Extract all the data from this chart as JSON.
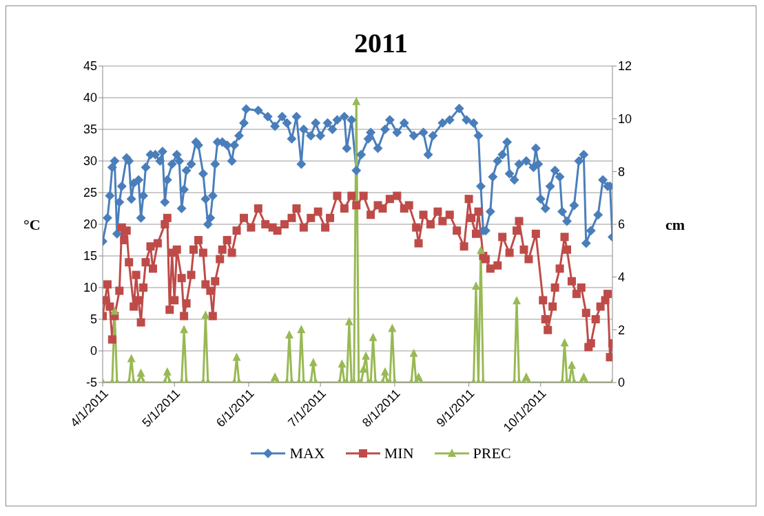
{
  "chart_data": {
    "type": "line",
    "title": "2011",
    "ylabel": "°C",
    "y2label": "cm",
    "xlim": [
      "2011-04-01",
      "2011-10-31"
    ],
    "xticks": [
      {
        "value": "2011-04-01",
        "label": "4/1/2011"
      },
      {
        "value": "2011-05-01",
        "label": "5/1/2011"
      },
      {
        "value": "2011-06-01",
        "label": "6/1/2011"
      },
      {
        "value": "2011-07-01",
        "label": "7/1/2011"
      },
      {
        "value": "2011-08-01",
        "label": "8/1/2011"
      },
      {
        "value": "2011-09-01",
        "label": "9/1/2011"
      },
      {
        "value": "2011-10-01",
        "label": "10/1/2011"
      }
    ],
    "ylim": [
      -5,
      45
    ],
    "yticks": [
      -5,
      0,
      5,
      10,
      15,
      20,
      25,
      30,
      35,
      40,
      45
    ],
    "y2lim": [
      0,
      12
    ],
    "y2ticks": [
      0,
      2,
      4,
      6,
      8,
      10,
      12
    ],
    "grid": "y",
    "legend": "bottom",
    "line_style": "solid",
    "series": [
      {
        "name": "MAX",
        "color": "#4a7ebb",
        "marker": "diamond",
        "x": [
          "2011-04-01",
          "2011-04-03",
          "2011-04-04",
          "2011-04-05",
          "2011-04-06",
          "2011-04-07",
          "2011-04-08",
          "2011-04-09",
          "2011-04-11",
          "2011-04-12",
          "2011-04-13",
          "2011-04-14",
          "2011-04-16",
          "2011-04-17",
          "2011-04-18",
          "2011-04-19",
          "2011-04-21",
          "2011-04-23",
          "2011-04-25",
          "2011-04-26",
          "2011-04-27",
          "2011-04-28",
          "2011-04-30",
          "2011-05-02",
          "2011-05-03",
          "2011-05-04",
          "2011-05-05",
          "2011-05-06",
          "2011-05-08",
          "2011-05-10",
          "2011-05-11",
          "2011-05-13",
          "2011-05-14",
          "2011-05-15",
          "2011-05-16",
          "2011-05-17",
          "2011-05-18",
          "2011-05-19",
          "2011-05-21",
          "2011-05-23",
          "2011-05-25",
          "2011-05-26",
          "2011-05-28",
          "2011-05-30",
          "2011-05-31",
          "2011-06-05",
          "2011-06-09",
          "2011-06-12",
          "2011-06-15",
          "2011-06-17",
          "2011-06-19",
          "2011-06-21",
          "2011-06-23",
          "2011-06-24",
          "2011-06-27",
          "2011-06-29",
          "2011-07-01",
          "2011-07-04",
          "2011-07-06",
          "2011-07-08",
          "2011-07-11",
          "2011-07-12",
          "2011-07-14",
          "2011-07-16",
          "2011-07-18",
          "2011-07-21",
          "2011-07-22",
          "2011-07-25",
          "2011-07-28",
          "2011-07-30",
          "2011-08-02",
          "2011-08-05",
          "2011-08-09",
          "2011-08-13",
          "2011-08-15",
          "2011-08-17",
          "2011-08-21",
          "2011-08-24",
          "2011-08-28",
          "2011-08-31",
          "2011-09-03",
          "2011-09-05",
          "2011-09-06",
          "2011-09-07",
          "2011-09-08",
          "2011-09-10",
          "2011-09-11",
          "2011-09-13",
          "2011-09-15",
          "2011-09-17",
          "2011-09-18",
          "2011-09-20",
          "2011-09-22",
          "2011-09-25",
          "2011-09-28",
          "2011-09-29",
          "2011-09-30",
          "2011-10-01",
          "2011-10-03",
          "2011-10-05",
          "2011-10-07",
          "2011-10-09",
          "2011-10-10",
          "2011-10-12",
          "2011-10-15",
          "2011-10-17",
          "2011-10-19",
          "2011-10-20",
          "2011-10-22",
          "2011-10-25",
          "2011-10-27",
          "2011-10-29",
          "2011-10-30",
          "2011-10-31"
        ],
        "values": [
          17.3,
          21,
          24.5,
          29,
          30,
          18.5,
          23.5,
          26,
          30.5,
          30,
          24,
          26.5,
          27,
          21,
          24.5,
          29,
          31,
          31,
          30,
          31.5,
          23.5,
          27,
          29.5,
          31,
          30,
          22.5,
          25.5,
          28.5,
          29.5,
          33,
          32.5,
          28,
          24,
          20,
          21,
          24.5,
          29.5,
          33,
          33,
          32.5,
          30,
          32.5,
          34,
          36,
          38.2,
          38,
          37,
          35.5,
          37,
          36,
          33.5,
          37,
          29.5,
          35,
          34,
          36,
          34,
          36,
          35,
          36.5,
          37,
          32,
          36.5,
          28.5,
          31,
          33.5,
          34.5,
          32,
          35,
          36.5,
          34.5,
          36,
          34,
          34.5,
          31,
          34,
          36,
          36.5,
          38.3,
          36.5,
          36,
          34,
          26,
          19,
          19,
          22,
          27.5,
          30,
          31,
          33,
          28,
          27,
          29.5,
          30,
          29,
          32,
          29.5,
          24,
          22.5,
          26,
          28.5,
          27.5,
          22,
          20.5,
          23,
          30,
          31,
          17,
          19,
          21.5,
          27,
          26,
          26,
          18
        ]
      },
      {
        "name": "MIN",
        "color": "#be4b48",
        "marker": "square",
        "x": [
          "2011-04-01",
          "2011-04-02",
          "2011-04-03",
          "2011-04-04",
          "2011-04-05",
          "2011-04-06",
          "2011-04-08",
          "2011-04-09",
          "2011-04-10",
          "2011-04-11",
          "2011-04-12",
          "2011-04-14",
          "2011-04-15",
          "2011-04-16",
          "2011-04-17",
          "2011-04-18",
          "2011-04-19",
          "2011-04-21",
          "2011-04-22",
          "2011-04-24",
          "2011-04-27",
          "2011-04-28",
          "2011-04-29",
          "2011-04-30",
          "2011-05-01",
          "2011-05-02",
          "2011-05-04",
          "2011-05-05",
          "2011-05-06",
          "2011-05-08",
          "2011-05-09",
          "2011-05-11",
          "2011-05-13",
          "2011-05-14",
          "2011-05-16",
          "2011-05-17",
          "2011-05-18",
          "2011-05-20",
          "2011-05-21",
          "2011-05-23",
          "2011-05-25",
          "2011-05-27",
          "2011-05-30",
          "2011-06-02",
          "2011-06-05",
          "2011-06-08",
          "2011-06-11",
          "2011-06-13",
          "2011-06-16",
          "2011-06-19",
          "2011-06-21",
          "2011-06-24",
          "2011-06-27",
          "2011-06-30",
          "2011-07-03",
          "2011-07-05",
          "2011-07-08",
          "2011-07-11",
          "2011-07-14",
          "2011-07-16",
          "2011-07-19",
          "2011-07-22",
          "2011-07-25",
          "2011-07-27",
          "2011-07-30",
          "2011-08-02",
          "2011-08-05",
          "2011-08-07",
          "2011-08-10",
          "2011-08-11",
          "2011-08-13",
          "2011-08-16",
          "2011-08-19",
          "2011-08-21",
          "2011-08-24",
          "2011-08-27",
          "2011-08-30",
          "2011-09-01",
          "2011-09-02",
          "2011-09-04",
          "2011-09-05",
          "2011-09-07",
          "2011-09-08",
          "2011-09-10",
          "2011-09-13",
          "2011-09-15",
          "2011-09-18",
          "2011-09-21",
          "2011-09-22",
          "2011-09-24",
          "2011-09-26",
          "2011-09-29",
          "2011-10-02",
          "2011-10-03",
          "2011-10-04",
          "2011-10-06",
          "2011-10-07",
          "2011-10-09",
          "2011-10-11",
          "2011-10-12",
          "2011-10-14",
          "2011-10-16",
          "2011-10-18",
          "2011-10-20",
          "2011-10-21",
          "2011-10-22",
          "2011-10-24",
          "2011-10-26",
          "2011-10-28",
          "2011-10-29",
          "2011-10-30",
          "2011-10-31"
        ],
        "values": [
          5.5,
          8,
          10.5,
          7,
          1.8,
          5.5,
          9.5,
          19.5,
          17.5,
          19,
          14,
          7,
          12,
          8,
          4.5,
          10,
          14,
          16.5,
          13,
          17,
          20,
          21,
          6.5,
          15.5,
          8,
          16,
          11.5,
          5.5,
          7.5,
          12,
          16,
          17.5,
          15.5,
          10.5,
          9.5,
          5.5,
          11,
          14.5,
          16,
          17.5,
          15.5,
          19,
          21,
          19.5,
          22.5,
          20,
          19.5,
          19,
          20,
          21,
          22.5,
          19.5,
          21,
          22,
          19.5,
          21,
          24.5,
          22.5,
          24.5,
          23,
          24.5,
          21.5,
          23,
          22.5,
          24,
          24.5,
          22.5,
          23,
          19.5,
          17,
          21.5,
          20,
          22,
          20.5,
          21.5,
          19,
          16.5,
          24,
          21,
          18.5,
          22,
          15,
          14.5,
          13,
          13.5,
          18,
          15.5,
          19,
          20.5,
          16,
          14.5,
          18.5,
          8,
          5,
          3.3,
          7,
          10,
          13,
          18,
          16,
          11,
          9,
          10,
          6,
          0.6,
          1.2,
          5,
          7,
          8,
          9,
          -1,
          1.2
        ]
      },
      {
        "name": "PREC",
        "color": "#98b954",
        "marker": "triangle",
        "axis": "y2",
        "x": [
          "2011-04-01",
          "2011-04-05",
          "2011-04-06",
          "2011-04-07",
          "2011-04-12",
          "2011-04-13",
          "2011-04-14",
          "2011-04-16",
          "2011-04-17",
          "2011-04-18",
          "2011-04-27",
          "2011-04-28",
          "2011-04-29",
          "2011-05-04",
          "2011-05-05",
          "2011-05-06",
          "2011-05-13",
          "2011-05-14",
          "2011-05-15",
          "2011-05-26",
          "2011-05-27",
          "2011-05-28",
          "2011-06-11",
          "2011-06-12",
          "2011-06-13",
          "2011-06-17",
          "2011-06-18",
          "2011-06-19",
          "2011-06-22",
          "2011-06-23",
          "2011-06-24",
          "2011-06-27",
          "2011-06-28",
          "2011-06-29",
          "2011-07-09",
          "2011-07-10",
          "2011-07-11",
          "2011-07-12",
          "2011-07-13",
          "2011-07-14",
          "2011-07-15",
          "2011-07-16",
          "2011-07-17",
          "2011-07-18",
          "2011-07-19",
          "2011-07-20",
          "2011-07-21",
          "2011-07-22",
          "2011-07-23",
          "2011-07-24",
          "2011-07-27",
          "2011-07-28",
          "2011-07-29",
          "2011-07-30",
          "2011-07-31",
          "2011-08-01",
          "2011-08-08",
          "2011-08-09",
          "2011-08-10",
          "2011-08-11",
          "2011-08-12",
          "2011-09-03",
          "2011-09-04",
          "2011-09-05",
          "2011-09-06",
          "2011-09-07",
          "2011-09-20",
          "2011-09-21",
          "2011-09-22",
          "2011-09-24",
          "2011-09-25",
          "2011-09-26",
          "2011-10-10",
          "2011-10-11",
          "2011-10-12",
          "2011-10-13",
          "2011-10-14",
          "2011-10-15",
          "2011-10-18",
          "2011-10-19",
          "2011-10-20",
          "2011-10-31"
        ],
        "values": [
          0,
          0,
          2.7,
          0,
          0,
          0.9,
          0,
          0,
          0.35,
          0,
          0,
          0.4,
          0,
          0,
          2,
          0,
          0,
          2.55,
          0,
          0,
          0.95,
          0,
          0,
          0.2,
          0,
          0,
          1.8,
          0,
          0,
          2,
          0,
          0,
          0.75,
          0,
          0,
          0.7,
          0,
          0,
          2.3,
          0,
          0,
          10.65,
          0,
          0,
          0.5,
          1,
          0,
          0,
          1.7,
          0,
          0,
          0.4,
          0,
          0,
          2.05,
          0,
          0,
          1.1,
          0,
          0.2,
          0,
          0,
          3.65,
          0,
          5,
          0,
          0,
          3.1,
          0,
          0,
          0.2,
          0,
          0,
          1.5,
          0,
          0,
          0.65,
          0,
          0,
          0.2,
          0,
          0
        ]
      }
    ]
  }
}
